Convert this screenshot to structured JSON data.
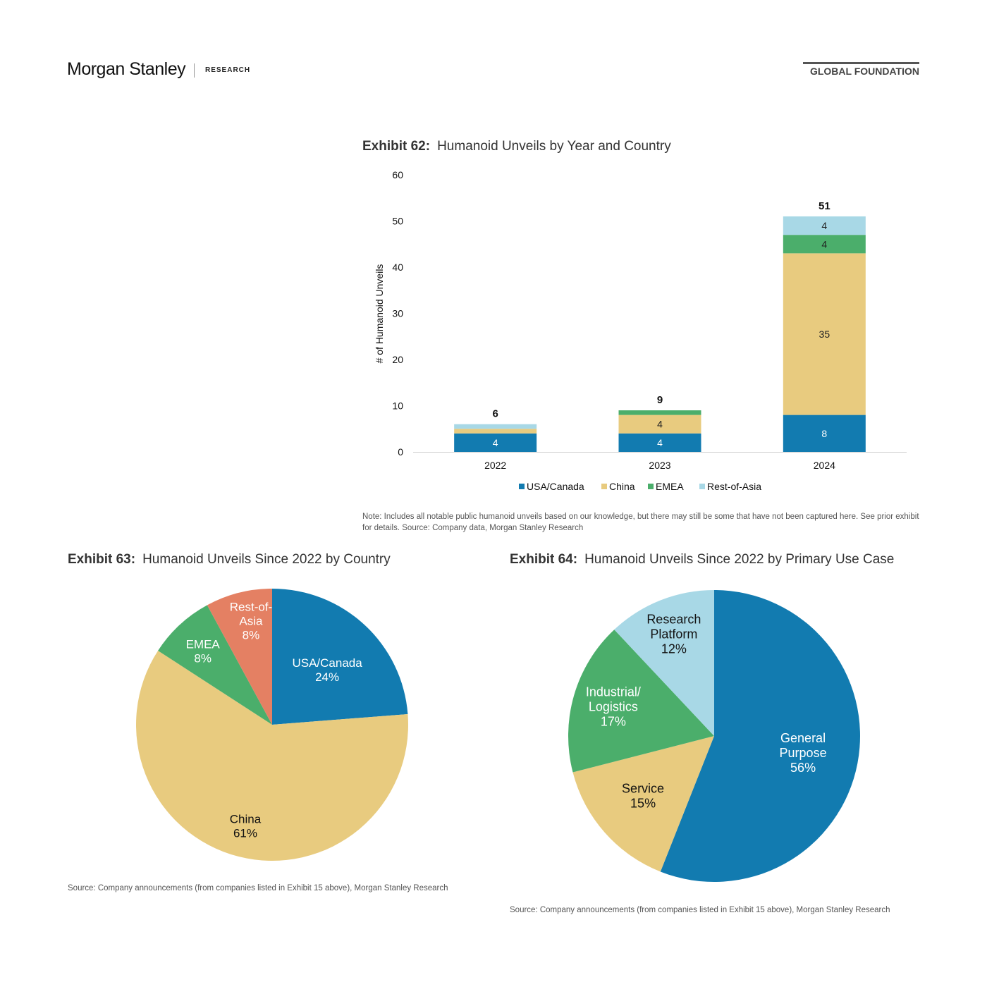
{
  "header": {
    "brand": "Morgan Stanley",
    "section": "RESEARCH",
    "series": "GLOBAL FOUNDATION"
  },
  "exhibit62": {
    "label": "Exhibit 62:",
    "title": "Humanoid Unveils by Year and Country",
    "note": "Note: Includes all notable public humanoid unveils based on our knowledge, but there may still be some that have not been captured here. See prior exhibit for details. Source: Company data, Morgan Stanley Research"
  },
  "exhibit63": {
    "label": "Exhibit 63:",
    "title": "Humanoid Unveils Since 2022 by Country",
    "source": "Source: Company announcements (from companies listed in Exhibit 15 above), Morgan Stanley Research"
  },
  "exhibit64": {
    "label": "Exhibit 64:",
    "title": "Humanoid Unveils Since 2022 by Primary Use Case",
    "source": "Source: Company announcements (from companies listed in Exhibit 15 above), Morgan Stanley Research"
  },
  "chart_data": [
    {
      "type": "bar",
      "stacked": true,
      "categories": [
        "2022",
        "2023",
        "2024"
      ],
      "series": [
        {
          "name": "USA/Canada",
          "values": [
            4,
            4,
            8
          ],
          "color": "#127BB0",
          "labels": [
            "4",
            "4",
            "8"
          ],
          "label_color": "#ffffff"
        },
        {
          "name": "China",
          "values": [
            1,
            4,
            35
          ],
          "color": "#E8CB7F",
          "labels": [
            "",
            "4",
            "35"
          ],
          "label_color": "#222222"
        },
        {
          "name": "EMEA",
          "values": [
            0,
            1,
            4
          ],
          "color": "#4BAE6B",
          "labels": [
            "",
            "",
            "4"
          ],
          "label_color": "#222222"
        },
        {
          "name": "Rest-of-Asia",
          "values": [
            1,
            0,
            4
          ],
          "color": "#A8D8E6",
          "labels": [
            "",
            "",
            "4"
          ],
          "label_color": "#222222"
        }
      ],
      "totals": [
        "6",
        "9",
        "51"
      ],
      "ylabel": "# of Humanoid Unveils",
      "ylim": [
        0,
        60
      ],
      "yticks": [
        "0",
        "10",
        "20",
        "30",
        "40",
        "50",
        "60"
      ],
      "legend": "bottom"
    },
    {
      "type": "pie",
      "slices": [
        {
          "label": [
            "USA/Canada",
            "24%"
          ],
          "value": 24,
          "color": "#127BB0",
          "text_color": "#ffffff"
        },
        {
          "label": [
            "China",
            "61%"
          ],
          "value": 61,
          "color": "#E8CB7F",
          "text_color": "#111111"
        },
        {
          "label": [
            "EMEA",
            "8%"
          ],
          "value": 8,
          "color": "#4BAE6B",
          "text_color": "#ffffff"
        },
        {
          "label": [
            "Rest-of-",
            "Asia",
            "8%"
          ],
          "value": 8,
          "color": "#E48063",
          "text_color": "#ffffff"
        }
      ]
    },
    {
      "type": "pie",
      "slices": [
        {
          "label": [
            "General",
            "Purpose",
            "56%"
          ],
          "value": 56,
          "color": "#127BB0",
          "text_color": "#ffffff"
        },
        {
          "label": [
            "Service",
            "15%"
          ],
          "value": 15,
          "color": "#E8CB7F",
          "text_color": "#111111"
        },
        {
          "label": [
            "Industrial/",
            "Logistics",
            "17%"
          ],
          "value": 17,
          "color": "#4BAE6B",
          "text_color": "#ffffff"
        },
        {
          "label": [
            "Research",
            "Platform",
            "12%"
          ],
          "value": 12,
          "color": "#A8D8E6",
          "text_color": "#111111"
        }
      ]
    }
  ]
}
